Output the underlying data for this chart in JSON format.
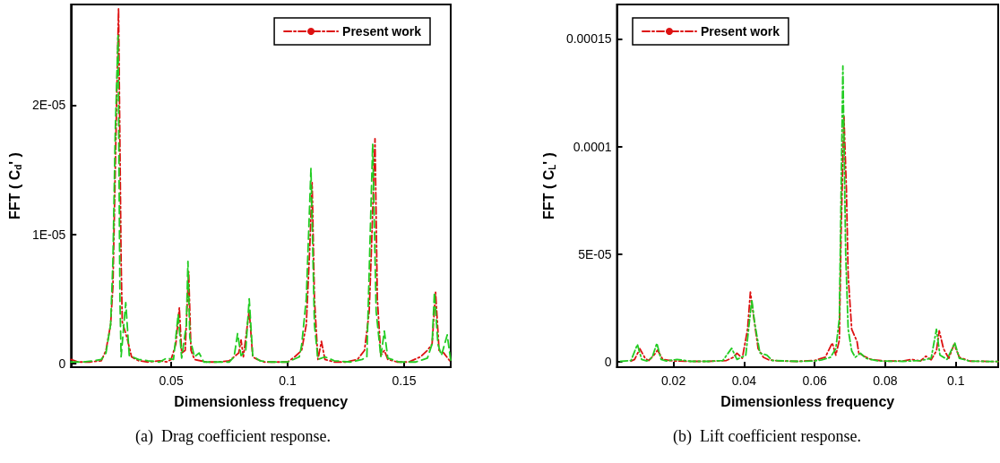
{
  "chart_data": [
    {
      "type": "line",
      "xlabel": "Dimensionless frequency",
      "ylabel": "FFT ( C$_{d}$' )",
      "annotations": [
        "(a)  Drag coefficient response."
      ],
      "xlim": [
        0.007,
        0.17
      ],
      "ylim": [
        -3e-07,
        2.78e-05
      ],
      "xticks": [
        0.05,
        0.1,
        0.15
      ],
      "yticks": [
        0,
        {
          "value": 1e-05,
          "label": "1E-05"
        },
        {
          "value": 2e-05,
          "label": "2E-05"
        }
      ],
      "grid": false,
      "legend": "top right",
      "marker": "none",
      "series": [
        {
          "name": "Present work",
          "color": "#dd1111",
          "line_style": "dashdot",
          "x": [
            0.007,
            0.01,
            0.015,
            0.02,
            0.022,
            0.024,
            0.025,
            0.026,
            0.0274,
            0.0285,
            0.029,
            0.031,
            0.033,
            0.036,
            0.04,
            0.045,
            0.048,
            0.05,
            0.052,
            0.0535,
            0.0545,
            0.056,
            0.0575,
            0.0585,
            0.06,
            0.065,
            0.07,
            0.075,
            0.079,
            0.08,
            0.081,
            0.0835,
            0.085,
            0.087,
            0.09,
            0.095,
            0.1,
            0.103,
            0.106,
            0.108,
            0.1095,
            0.1105,
            0.1115,
            0.113,
            0.1145,
            0.116,
            0.12,
            0.125,
            0.13,
            0.133,
            0.135,
            0.136,
            0.1375,
            0.1385,
            0.14,
            0.1415,
            0.143,
            0.147,
            0.152,
            0.157,
            0.16,
            0.162,
            0.1635,
            0.165,
            0.167,
            0.17
          ],
          "values": [
            3e-07,
            1e-07,
            1e-07,
            2e-07,
            1e-06,
            3e-06,
            6e-06,
            1.5e-05,
            2.75e-05,
            8e-06,
            3.2e-06,
            2e-06,
            5e-07,
            2e-07,
            1e-07,
            2e-07,
            1e-07,
            3e-07,
            1.5e-06,
            4.3e-06,
            8e-07,
            1e-06,
            7.1e-06,
            1e-06,
            3e-07,
            1e-07,
            1e-07,
            2e-07,
            8e-07,
            1.8e-06,
            5e-07,
            4.1e-06,
            5e-07,
            3e-07,
            1e-07,
            1e-07,
            1e-07,
            5e-07,
            1e-06,
            3e-06,
            9e-06,
            1.4e-05,
            5e-06,
            3e-07,
            1.7e-06,
            3e-07,
            1e-07,
            1e-07,
            3e-07,
            1e-06,
            4e-06,
            9e-06,
            1.74e-05,
            5e-06,
            6e-07,
            1e-06,
            3e-07,
            1e-07,
            1e-07,
            5e-07,
            1e-06,
            1.5e-06,
            5.5e-06,
            1e-06,
            8e-07,
            1e-07
          ]
        },
        {
          "color": "#22cc22",
          "line_style": "dashed",
          "x": [
            0.007,
            0.012,
            0.017,
            0.02,
            0.022,
            0.024,
            0.025,
            0.026,
            0.0272,
            0.028,
            0.0285,
            0.0305,
            0.032,
            0.036,
            0.04,
            0.045,
            0.048,
            0.051,
            0.053,
            0.0545,
            0.0565,
            0.0572,
            0.058,
            0.06,
            0.062,
            0.064,
            0.07,
            0.075,
            0.077,
            0.0785,
            0.08,
            0.082,
            0.0835,
            0.085,
            0.088,
            0.093,
            0.1,
            0.105,
            0.106,
            0.108,
            0.11,
            0.1115,
            0.113,
            0.116,
            0.12,
            0.127,
            0.132,
            0.134,
            0.1365,
            0.138,
            0.14,
            0.1415,
            0.143,
            0.148,
            0.155,
            0.16,
            0.162,
            0.163,
            0.1645,
            0.166,
            0.1685,
            0.17
          ],
          "values": [
            1e-07,
            1e-07,
            2e-07,
            3e-07,
            8e-07,
            3e-06,
            8e-06,
            1.8e-05,
            2.54e-05,
            5e-06,
            5e-07,
            4.7e-06,
            6e-07,
            3e-07,
            2e-07,
            1e-07,
            4e-07,
            3e-07,
            3.8e-06,
            4e-07,
            3e-06,
            7.9e-06,
            2e-06,
            5e-07,
            8e-07,
            1e-07,
            1e-07,
            1e-07,
            5e-07,
            2.3e-06,
            6e-07,
            1e-06,
            5e-06,
            6e-07,
            2e-07,
            1e-07,
            1e-07,
            5e-07,
            1.4e-06,
            5e-06,
            1.51e-05,
            3e-06,
            3e-07,
            5e-07,
            2e-07,
            1e-07,
            3e-07,
            5e-07,
            1.7e-05,
            4e-06,
            5e-07,
            2.5e-06,
            4e-07,
            1e-07,
            1e-07,
            4e-07,
            1.5e-06,
            5.5e-06,
            1.5e-06,
            6e-07,
            2.2e-06,
            2e-07
          ]
        }
      ]
    },
    {
      "type": "line",
      "xlabel": "Dimensionless frequency",
      "ylabel": "FFT ( C$_{L}$' )",
      "annotations": [
        "(b)  Lift coefficient response."
      ],
      "xlim": [
        0.004,
        0.112
      ],
      "ylim": [
        -2.6e-06,
        0.000166
      ],
      "xticks": [
        0.02,
        0.04,
        0.06,
        0.08,
        0.1
      ],
      "yticks": [
        0,
        {
          "value": 5e-05,
          "label": "5E-05"
        },
        0.0001,
        0.00015
      ],
      "grid": false,
      "legend": "top left",
      "marker": "none",
      "series": [
        {
          "name": "Present work",
          "color": "#dd1111",
          "line_style": "dashdot",
          "x": [
            0.008,
            0.009,
            0.0105,
            0.012,
            0.013,
            0.0145,
            0.0155,
            0.017,
            0.02,
            0.025,
            0.03,
            0.035,
            0.037,
            0.038,
            0.0395,
            0.041,
            0.0418,
            0.0428,
            0.044,
            0.0455,
            0.047,
            0.05,
            0.055,
            0.06,
            0.063,
            0.065,
            0.066,
            0.067,
            0.0675,
            0.0683,
            0.069,
            0.0695,
            0.0705,
            0.072,
            0.0725,
            0.074,
            0.076,
            0.08,
            0.085,
            0.0875,
            0.09,
            0.0915,
            0.093,
            0.0945,
            0.0953,
            0.0965,
            0.098,
            0.0995,
            0.101,
            0.104,
            0.112
          ],
          "values": [
            2e-07,
            1e-06,
            6e-06,
            1.5e-06,
            5e-07,
            3e-06,
            5.3e-06,
            1e-06,
            3e-07,
            1e-07,
            1e-07,
            5e-07,
            2e-06,
            3.9e-06,
            1.5e-06,
            1.5e-05,
            3.23e-05,
            2e-05,
            6e-06,
            2e-06,
            8e-07,
            3e-07,
            1e-07,
            5e-07,
            2e-06,
            8.7e-06,
            3e-06,
            1e-05,
            6e-05,
            0.000114,
            8e-05,
            4e-05,
            1.5e-05,
            9.4e-06,
            4e-06,
            2.5e-06,
            1e-06,
            2e-07,
            3e-07,
            1e-06,
            3e-07,
            2.5e-06,
            8e-07,
            5e-06,
            1.43e-05,
            6e-06,
            1.5e-06,
            8e-06,
            2e-06,
            2e-07,
            0
          ]
        },
        {
          "color": "#22cc22",
          "line_style": "dashdot",
          "x": [
            0.005,
            0.008,
            0.0098,
            0.011,
            0.0125,
            0.014,
            0.0153,
            0.0165,
            0.018,
            0.021,
            0.025,
            0.03,
            0.034,
            0.0365,
            0.038,
            0.0405,
            0.0422,
            0.043,
            0.0445,
            0.0465,
            0.048,
            0.055,
            0.06,
            0.062,
            0.0645,
            0.066,
            0.067,
            0.068,
            0.0688,
            0.0695,
            0.0705,
            0.0715,
            0.073,
            0.0745,
            0.078,
            0.085,
            0.09,
            0.093,
            0.0945,
            0.0955,
            0.0975,
            0.0997,
            0.101,
            0.104,
            0.112
          ],
          "values": [
            1e-07,
            5e-07,
            8e-06,
            1e-06,
            3e-07,
            2e-06,
            8.5e-06,
            1e-06,
            3e-07,
            1e-06,
            1e-07,
            1e-07,
            5e-07,
            6.2e-06,
            1e-06,
            3e-06,
            2.88e-05,
            1.8e-05,
            4e-06,
            3e-06,
            5e-07,
            1e-07,
            3e-07,
            8e-07,
            2e-06,
            6e-06,
            2e-05,
            0.0001374,
            5e-05,
            1.5e-05,
            5e-06,
            2e-06,
            3.9e-06,
            1.5e-06,
            3e-07,
            1e-07,
            5e-07,
            1.5e-06,
            1.5e-05,
            3e-06,
            1e-06,
            8.7e-06,
            1.5e-06,
            2e-07,
            0
          ]
        }
      ]
    }
  ]
}
